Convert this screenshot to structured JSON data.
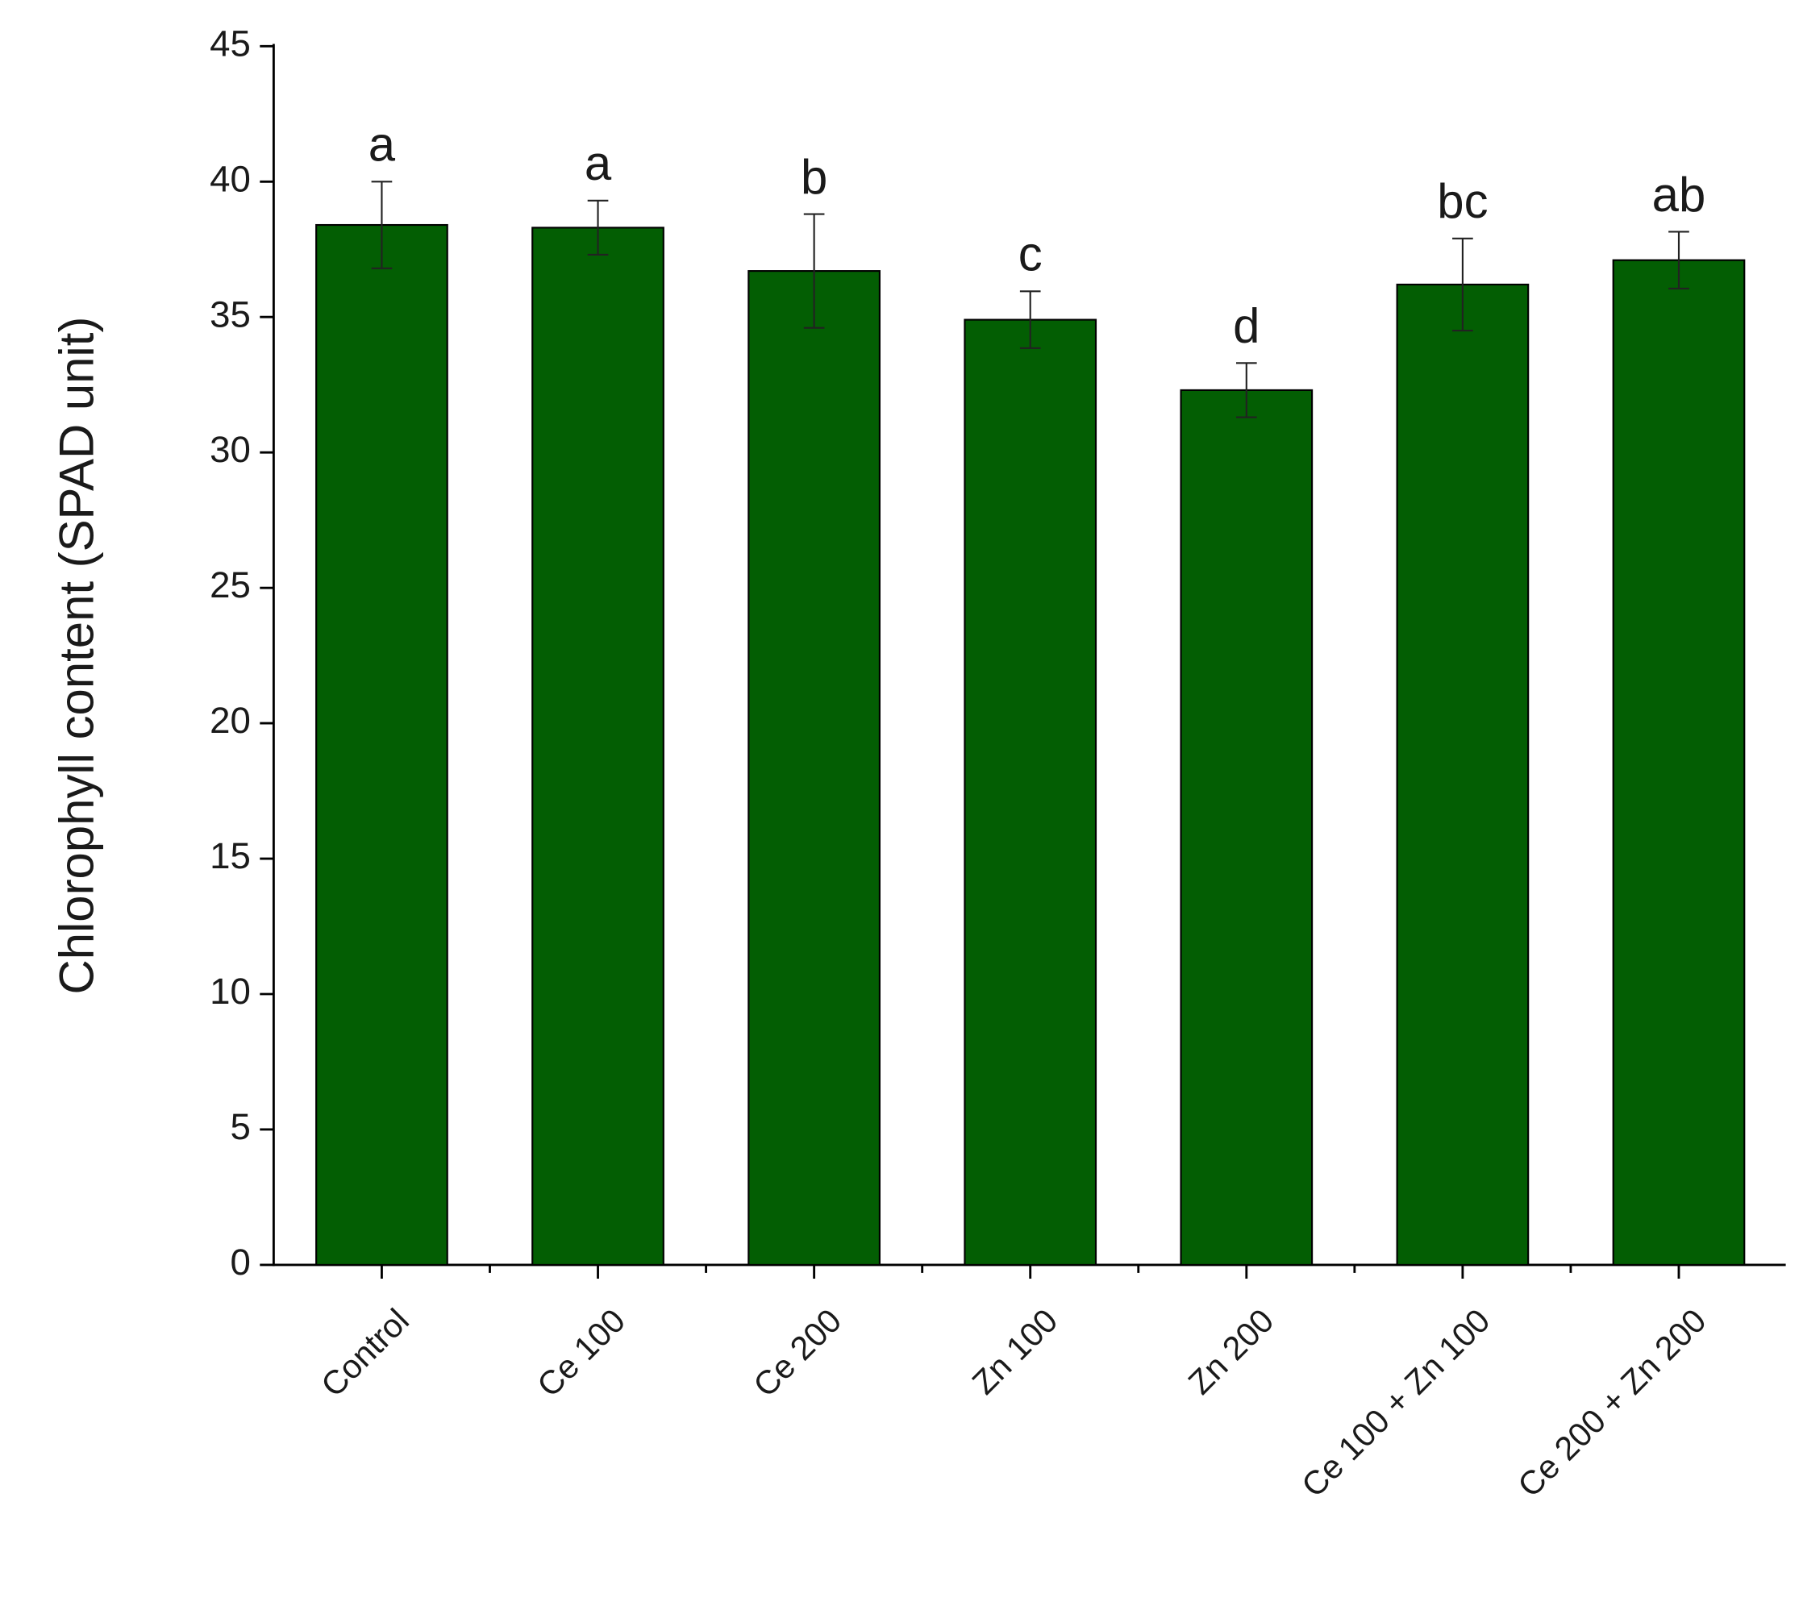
{
  "chart_data": {
    "type": "bar",
    "y_label": "Chlorophyll content (SPAD unit)",
    "categories": [
      "Control",
      "Ce 100",
      "Ce 200",
      "Zn 100",
      "Zn 200",
      "Ce 100 + Zn 100",
      "Ce 200 + Zn 200"
    ],
    "values": [
      38.4,
      38.3,
      36.7,
      34.9,
      32.3,
      36.2,
      37.1
    ],
    "errors": [
      1.6,
      1.0,
      2.1,
      1.05,
      1.0,
      1.7,
      1.05
    ],
    "annotations": [
      "a",
      "a",
      "b",
      "c",
      "d",
      "bc",
      "ab"
    ],
    "color": "#035e03",
    "ylim": [
      0,
      45
    ],
    "yticks": [
      0,
      5,
      10,
      15,
      20,
      25,
      30,
      35,
      40,
      45
    ]
  }
}
